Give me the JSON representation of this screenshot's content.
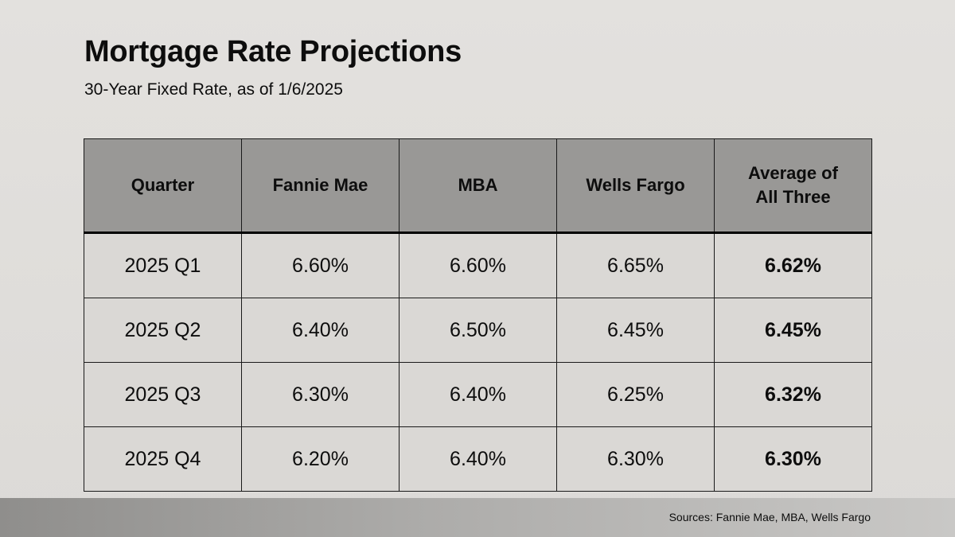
{
  "header": {
    "title": "Mortgage Rate Projections",
    "subtitle": "30-Year Fixed Rate, as of 1/6/2025"
  },
  "chart_data": {
    "type": "table",
    "title": "Mortgage Rate Projections",
    "subtitle": "30-Year Fixed Rate, as of 1/6/2025",
    "columns": [
      "Quarter",
      "Fannie Mae",
      "MBA",
      "Wells Fargo",
      "Average of All Three"
    ],
    "rows": [
      {
        "quarter": "2025 Q1",
        "fannie_mae": "6.60%",
        "mba": "6.60%",
        "wells_fargo": "6.65%",
        "average": "6.62%"
      },
      {
        "quarter": "2025 Q2",
        "fannie_mae": "6.40%",
        "mba": "6.50%",
        "wells_fargo": "6.45%",
        "average": "6.45%"
      },
      {
        "quarter": "2025 Q3",
        "fannie_mae": "6.30%",
        "mba": "6.40%",
        "wells_fargo": "6.25%",
        "average": "6.32%"
      },
      {
        "quarter": "2025 Q4",
        "fannie_mae": "6.20%",
        "mba": "6.40%",
        "wells_fargo": "6.30%",
        "average": "6.30%"
      }
    ]
  },
  "footer": {
    "sources": "Sources: Fannie Mae, MBA, Wells Fargo"
  }
}
